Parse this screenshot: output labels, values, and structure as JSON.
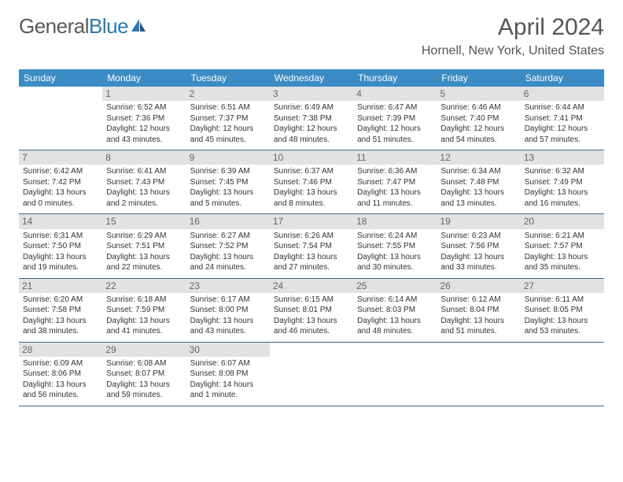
{
  "logo": {
    "text1": "General",
    "text2": "Blue"
  },
  "title": "April 2024",
  "location": "Hornell, New York, United States",
  "colors": {
    "header_bg": "#3b8bc4",
    "header_text": "#ffffff",
    "row_border": "#3b6a8f",
    "daynum_bg": "#e2e2e2",
    "daynum_text": "#666666",
    "body_text": "#333333",
    "logo_gray": "#5a5a5a",
    "logo_blue": "#2a7ab0",
    "title_text": "#555555"
  },
  "layout": {
    "columns": 7,
    "weekdays": [
      "Sunday",
      "Monday",
      "Tuesday",
      "Wednesday",
      "Thursday",
      "Friday",
      "Saturday"
    ],
    "first_day_column": 1,
    "num_days": 30,
    "cell_font_size_pt": 7.5,
    "header_font_size_pt": 9,
    "title_font_size_pt": 22
  },
  "days": {
    "1": {
      "sunrise": "6:52 AM",
      "sunset": "7:36 PM",
      "daylight": "12 hours and 43 minutes."
    },
    "2": {
      "sunrise": "6:51 AM",
      "sunset": "7:37 PM",
      "daylight": "12 hours and 45 minutes."
    },
    "3": {
      "sunrise": "6:49 AM",
      "sunset": "7:38 PM",
      "daylight": "12 hours and 48 minutes."
    },
    "4": {
      "sunrise": "6:47 AM",
      "sunset": "7:39 PM",
      "daylight": "12 hours and 51 minutes."
    },
    "5": {
      "sunrise": "6:46 AM",
      "sunset": "7:40 PM",
      "daylight": "12 hours and 54 minutes."
    },
    "6": {
      "sunrise": "6:44 AM",
      "sunset": "7:41 PM",
      "daylight": "12 hours and 57 minutes."
    },
    "7": {
      "sunrise": "6:42 AM",
      "sunset": "7:42 PM",
      "daylight": "13 hours and 0 minutes."
    },
    "8": {
      "sunrise": "6:41 AM",
      "sunset": "7:43 PM",
      "daylight": "13 hours and 2 minutes."
    },
    "9": {
      "sunrise": "6:39 AM",
      "sunset": "7:45 PM",
      "daylight": "13 hours and 5 minutes."
    },
    "10": {
      "sunrise": "6:37 AM",
      "sunset": "7:46 PM",
      "daylight": "13 hours and 8 minutes."
    },
    "11": {
      "sunrise": "6:36 AM",
      "sunset": "7:47 PM",
      "daylight": "13 hours and 11 minutes."
    },
    "12": {
      "sunrise": "6:34 AM",
      "sunset": "7:48 PM",
      "daylight": "13 hours and 13 minutes."
    },
    "13": {
      "sunrise": "6:32 AM",
      "sunset": "7:49 PM",
      "daylight": "13 hours and 16 minutes."
    },
    "14": {
      "sunrise": "6:31 AM",
      "sunset": "7:50 PM",
      "daylight": "13 hours and 19 minutes."
    },
    "15": {
      "sunrise": "6:29 AM",
      "sunset": "7:51 PM",
      "daylight": "13 hours and 22 minutes."
    },
    "16": {
      "sunrise": "6:27 AM",
      "sunset": "7:52 PM",
      "daylight": "13 hours and 24 minutes."
    },
    "17": {
      "sunrise": "6:26 AM",
      "sunset": "7:54 PM",
      "daylight": "13 hours and 27 minutes."
    },
    "18": {
      "sunrise": "6:24 AM",
      "sunset": "7:55 PM",
      "daylight": "13 hours and 30 minutes."
    },
    "19": {
      "sunrise": "6:23 AM",
      "sunset": "7:56 PM",
      "daylight": "13 hours and 33 minutes."
    },
    "20": {
      "sunrise": "6:21 AM",
      "sunset": "7:57 PM",
      "daylight": "13 hours and 35 minutes."
    },
    "21": {
      "sunrise": "6:20 AM",
      "sunset": "7:58 PM",
      "daylight": "13 hours and 38 minutes."
    },
    "22": {
      "sunrise": "6:18 AM",
      "sunset": "7:59 PM",
      "daylight": "13 hours and 41 minutes."
    },
    "23": {
      "sunrise": "6:17 AM",
      "sunset": "8:00 PM",
      "daylight": "13 hours and 43 minutes."
    },
    "24": {
      "sunrise": "6:15 AM",
      "sunset": "8:01 PM",
      "daylight": "13 hours and 46 minutes."
    },
    "25": {
      "sunrise": "6:14 AM",
      "sunset": "8:03 PM",
      "daylight": "13 hours and 48 minutes."
    },
    "26": {
      "sunrise": "6:12 AM",
      "sunset": "8:04 PM",
      "daylight": "13 hours and 51 minutes."
    },
    "27": {
      "sunrise": "6:11 AM",
      "sunset": "8:05 PM",
      "daylight": "13 hours and 53 minutes."
    },
    "28": {
      "sunrise": "6:09 AM",
      "sunset": "8:06 PM",
      "daylight": "13 hours and 56 minutes."
    },
    "29": {
      "sunrise": "6:08 AM",
      "sunset": "8:07 PM",
      "daylight": "13 hours and 59 minutes."
    },
    "30": {
      "sunrise": "6:07 AM",
      "sunset": "8:08 PM",
      "daylight": "14 hours and 1 minute."
    }
  },
  "labels": {
    "sunrise": "Sunrise:",
    "sunset": "Sunset:",
    "daylight": "Daylight:"
  }
}
